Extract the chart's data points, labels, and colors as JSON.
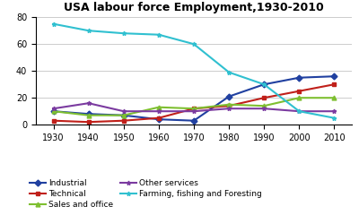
{
  "title": "USA labour force Employment,1930-2010",
  "years": [
    1930,
    1940,
    1950,
    1960,
    1970,
    1980,
    1990,
    2000,
    2010
  ],
  "series": {
    "Industrial": [
      10,
      8,
      7,
      4,
      3,
      21,
      30,
      35,
      36
    ],
    "Technical": [
      3,
      2,
      3,
      5,
      12,
      14,
      20,
      25,
      30
    ],
    "Sales and office": [
      10,
      7,
      7,
      13,
      12,
      15,
      14,
      20,
      20
    ],
    "Other services": [
      12,
      16,
      10,
      10,
      10,
      12,
      12,
      10,
      10
    ],
    "Farming, fishing and Foresting": [
      75,
      70,
      68,
      67,
      60,
      39,
      30,
      10,
      5
    ]
  },
  "colors": {
    "Industrial": "#2040A0",
    "Technical": "#C0201A",
    "Sales and office": "#7EBF30",
    "Other services": "#7B3BA0",
    "Farming, fishing and Foresting": "#30C0D0"
  },
  "markers": {
    "Industrial": "D",
    "Technical": "s",
    "Sales and office": "^",
    "Other services": "*",
    "Farming, fishing and Foresting": "*"
  },
  "ylim": [
    0,
    80
  ],
  "yticks": [
    0,
    20,
    40,
    60,
    80
  ],
  "bg_color": "#ffffff",
  "legend_ncol": 2
}
